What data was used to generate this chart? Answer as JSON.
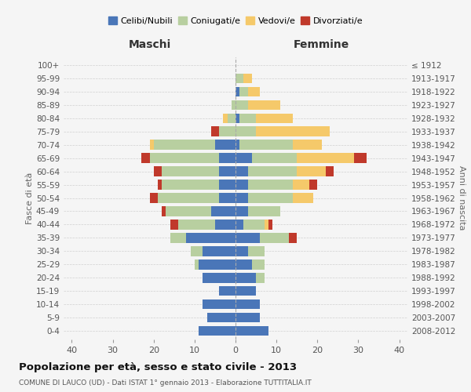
{
  "age_groups": [
    "0-4",
    "5-9",
    "10-14",
    "15-19",
    "20-24",
    "25-29",
    "30-34",
    "35-39",
    "40-44",
    "45-49",
    "50-54",
    "55-59",
    "60-64",
    "65-69",
    "70-74",
    "75-79",
    "80-84",
    "85-89",
    "90-94",
    "95-99",
    "100+"
  ],
  "birth_years": [
    "2008-2012",
    "2003-2007",
    "1998-2002",
    "1993-1997",
    "1988-1992",
    "1983-1987",
    "1978-1982",
    "1973-1977",
    "1968-1972",
    "1963-1967",
    "1958-1962",
    "1953-1957",
    "1948-1952",
    "1943-1947",
    "1938-1942",
    "1933-1937",
    "1928-1932",
    "1923-1927",
    "1918-1922",
    "1913-1917",
    "≤ 1912"
  ],
  "males": {
    "celibi": [
      9,
      7,
      8,
      4,
      8,
      9,
      8,
      12,
      5,
      6,
      4,
      4,
      4,
      4,
      5,
      0,
      0,
      0,
      0,
      0,
      0
    ],
    "coniugati": [
      0,
      0,
      0,
      0,
      0,
      1,
      3,
      4,
      9,
      11,
      15,
      14,
      14,
      17,
      15,
      4,
      2,
      1,
      0,
      0,
      0
    ],
    "vedovi": [
      0,
      0,
      0,
      0,
      0,
      0,
      0,
      0,
      0,
      0,
      0,
      0,
      0,
      0,
      1,
      0,
      1,
      0,
      0,
      0,
      0
    ],
    "divorziati": [
      0,
      0,
      0,
      0,
      0,
      0,
      0,
      0,
      2,
      1,
      2,
      1,
      2,
      2,
      0,
      2,
      0,
      0,
      0,
      0,
      0
    ]
  },
  "females": {
    "nubili": [
      8,
      6,
      6,
      5,
      5,
      4,
      3,
      6,
      2,
      3,
      3,
      3,
      3,
      4,
      1,
      0,
      1,
      0,
      1,
      0,
      0
    ],
    "coniugate": [
      0,
      0,
      0,
      0,
      2,
      3,
      4,
      7,
      5,
      8,
      11,
      11,
      12,
      11,
      13,
      5,
      4,
      3,
      2,
      2,
      0
    ],
    "vedove": [
      0,
      0,
      0,
      0,
      0,
      0,
      0,
      0,
      1,
      0,
      5,
      4,
      7,
      14,
      7,
      18,
      9,
      8,
      3,
      2,
      0
    ],
    "divorziate": [
      0,
      0,
      0,
      0,
      0,
      0,
      0,
      2,
      1,
      0,
      0,
      2,
      2,
      3,
      0,
      0,
      0,
      0,
      0,
      0,
      0
    ]
  },
  "colors": {
    "celibi": "#4a76b8",
    "coniugati": "#b8cfa0",
    "vedovi": "#f5c96a",
    "divorziati": "#c0392b"
  },
  "title": "Popolazione per età, sesso e stato civile - 2013",
  "subtitle": "COMUNE DI LAUCO (UD) - Dati ISTAT 1° gennaio 2013 - Elaborazione TUTTITALIA.IT",
  "xlabel_left": "Maschi",
  "xlabel_right": "Femmine",
  "ylabel_left": "Fasce di età",
  "ylabel_right": "Anni di nascita",
  "xlim": 42,
  "background_color": "#f5f5f5",
  "grid_color": "#cccccc"
}
